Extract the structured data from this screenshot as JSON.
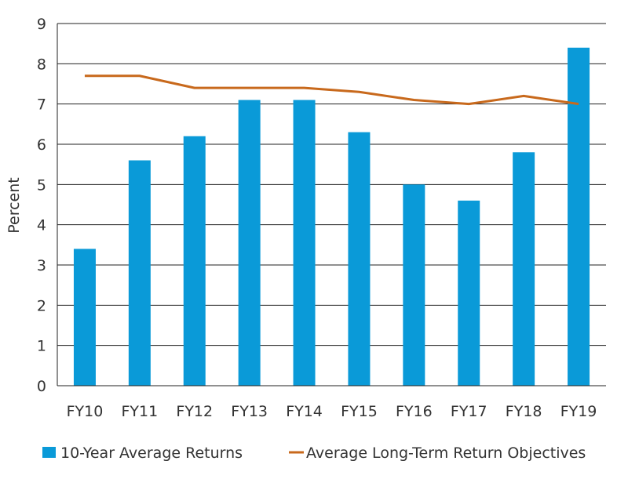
{
  "chart_data": {
    "type": "bar",
    "categories": [
      "FY10",
      "FY11",
      "FY12",
      "FY13",
      "FY14",
      "FY15",
      "FY16",
      "FY17",
      "FY18",
      "FY19"
    ],
    "series": [
      {
        "name": "10-Year Average Returns",
        "kind": "bar",
        "color": "#0a9ad8",
        "values": [
          3.4,
          5.6,
          6.2,
          7.1,
          7.1,
          6.3,
          5.0,
          4.6,
          5.8,
          8.4
        ]
      },
      {
        "name": "Average Long-Term Return Objectives",
        "kind": "line",
        "color": "#c8691c",
        "values": [
          7.7,
          7.7,
          7.4,
          7.4,
          7.4,
          7.3,
          7.1,
          7.0,
          7.2,
          7.0
        ]
      }
    ],
    "title": "",
    "xlabel": "",
    "ylabel": "Percent",
    "ylim": [
      0,
      9
    ],
    "yticks": [
      0,
      1,
      2,
      3,
      4,
      5,
      6,
      7,
      8,
      9
    ],
    "grid": "horizontal",
    "legend_position": "bottom"
  }
}
